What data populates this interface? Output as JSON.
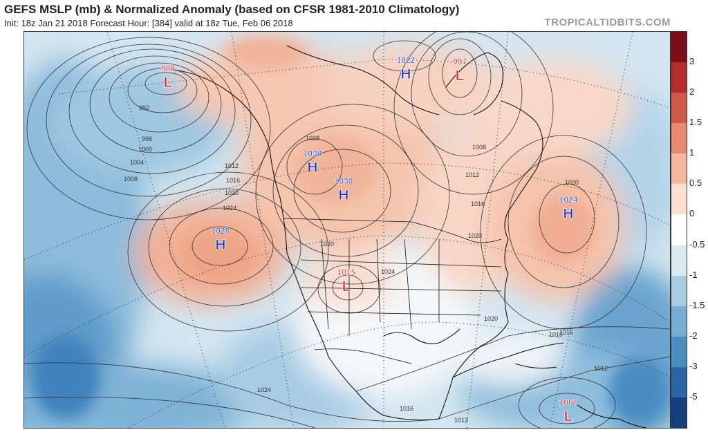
{
  "header": {
    "title": "GEFS MSLP (mb) & Normalized Anomaly (based on CFSR 1981-2010 Climatology)",
    "subtitle": "Init: 18z Jan 21 2018   Forecast Hour: [384]   valid at 18z Tue, Feb 06 2018",
    "brand": "TROPICALTIDBITS.COM"
  },
  "colorbar": {
    "labels": [
      "3",
      "2",
      "1.5",
      "1",
      "0.5",
      "0",
      "-0.5",
      "-1",
      "-1.5",
      "-2",
      "-3",
      "-5"
    ],
    "colors": [
      "#7d0f1a",
      "#b42c2c",
      "#d2584a",
      "#e88a70",
      "#f4b69c",
      "#fbe0d2",
      "#ffffff",
      "#dbe9f2",
      "#aacde3",
      "#77aed3",
      "#4a8dc1",
      "#2a66a6",
      "#143f82"
    ]
  },
  "systems": [
    {
      "type": "L",
      "pressure": "989",
      "color": "#d01c2c"
    },
    {
      "type": "H",
      "pressure": "1022",
      "color": "#1438c8"
    },
    {
      "type": "L",
      "pressure": "997",
      "color": "#d01c2c"
    },
    {
      "type": "H",
      "pressure": "1030",
      "color": "#1438c8"
    },
    {
      "type": "H",
      "pressure": "1030",
      "color": "#1438c8"
    },
    {
      "type": "H",
      "pressure": "1028",
      "color": "#1438c8"
    },
    {
      "type": "L",
      "pressure": "1015",
      "color": "#d01c2c"
    },
    {
      "type": "H",
      "pressure": "1024",
      "color": "#1438c8"
    },
    {
      "type": "L",
      "pressure": "1007",
      "color": "#d01c2c"
    }
  ],
  "isobar_labels": [
    "992",
    "996",
    "1000",
    "1004",
    "1008",
    "1012",
    "1016",
    "1020",
    "1024",
    "1028",
    "1008",
    "1012",
    "1016",
    "1020",
    "1020",
    "1024",
    "1020",
    "1016",
    "1020",
    "1016",
    "1012",
    "1024",
    "1016",
    "1012"
  ]
}
